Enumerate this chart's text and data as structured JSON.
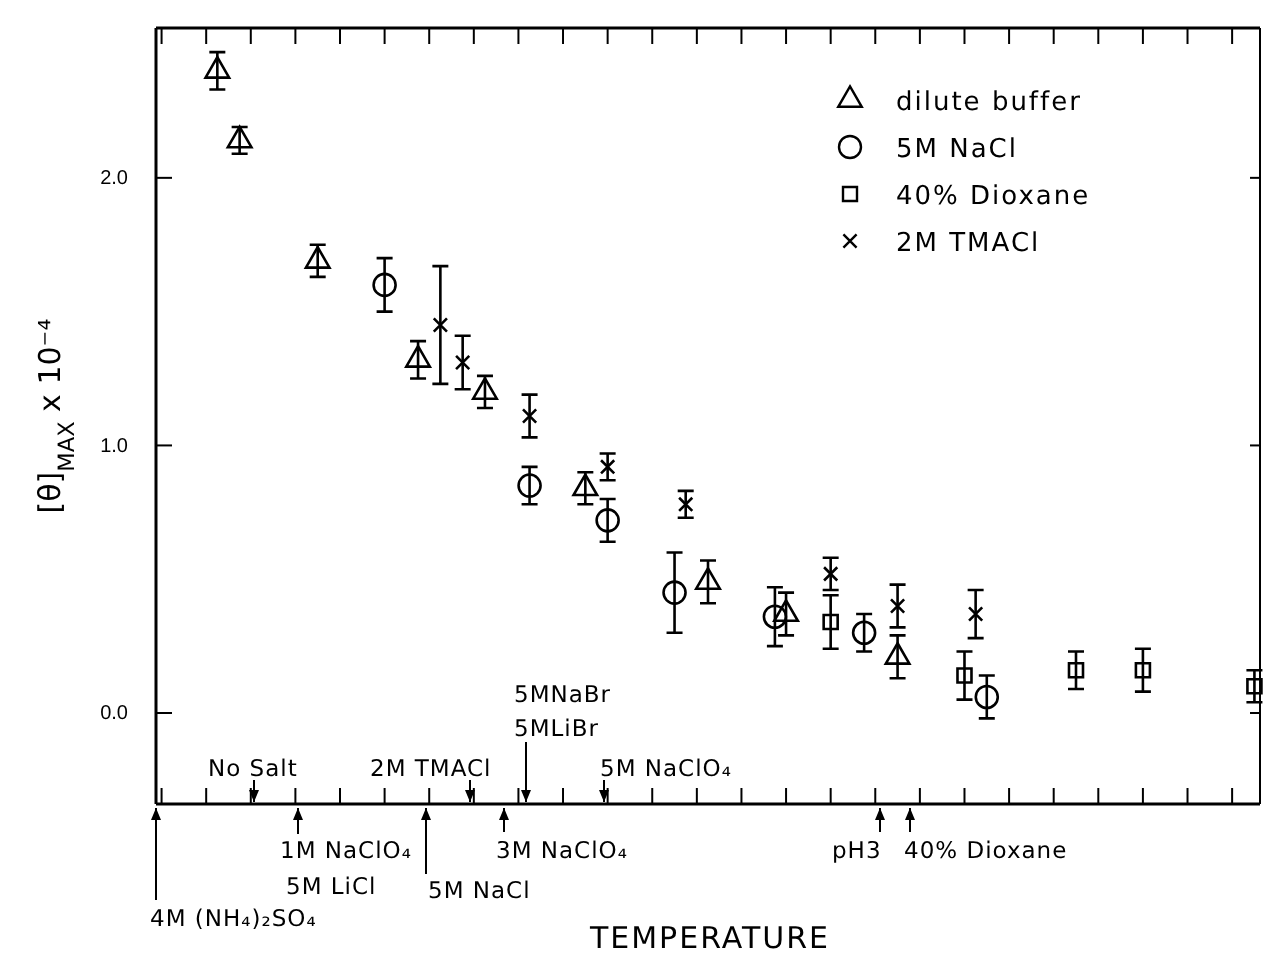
{
  "chart_data": {
    "type": "scatter",
    "xlabel": "TEMPERATURE",
    "ylabel": "[θ]$_{MAX}$ x 10⁻⁴",
    "categories": [
      null,
      null,
      null,
      null,
      null,
      null,
      null,
      null,
      null,
      null,
      null,
      null,
      null,
      null,
      null,
      null,
      null,
      null,
      null,
      null,
      null,
      null,
      null,
      null,
      null,
      null,
      null,
      null,
      null,
      null,
      null,
      null,
      null,
      null,
      null,
      null,
      null,
      null,
      null,
      null,
      null,
      null,
      null,
      null,
      null,
      null,
      null,
      null,
      null,
      null,
      null,
      null,
      null,
      null,
      null,
      null,
      null,
      null,
      null,
      null,
      null,
      null,
      null,
      null,
      null,
      null,
      null,
      null,
      null,
      null,
      null,
      null,
      null,
      null,
      null,
      null,
      null,
      null,
      null,
      null,
      null,
      null,
      null,
      null,
      null,
      null,
      null,
      null,
      null,
      null,
      null,
      null,
      null,
      null,
      null,
      null,
      null,
      null,
      null
    ],
    "ylim": [
      -0.34,
      2.56
    ],
    "yticks": [
      {
        "value": 0,
        "label": "0.0"
      },
      {
        "value": 1,
        "label": "1.0"
      },
      {
        "value": 2,
        "label": "2.0"
      }
    ],
    "legend": "top right",
    "series": [
      {
        "name": "dilute buffer",
        "color": "#000000",
        "marker": "triangle",
        "values": [
          null,
          null,
          null,
          null,
          null,
          2.4,
          null,
          2.14,
          null,
          null,
          null,
          null,
          null,
          null,
          1.69,
          null,
          null,
          null,
          null,
          null,
          null,
          null,
          null,
          1.32,
          null,
          null,
          null,
          null,
          null,
          1.2,
          null,
          null,
          null,
          null,
          null,
          null,
          null,
          null,
          0.84,
          null,
          null,
          null,
          null,
          null,
          null,
          null,
          null,
          null,
          null,
          0.49,
          null,
          null,
          null,
          null,
          null,
          null,
          0.37,
          null,
          null,
          null,
          null,
          null,
          null,
          null,
          null,
          null,
          0.21,
          null,
          null,
          null,
          null,
          null,
          null,
          null,
          null,
          null,
          null,
          null,
          null,
          null,
          null,
          null,
          null,
          null,
          null,
          null,
          null,
          null,
          null,
          null,
          null,
          null,
          null,
          null,
          null,
          null,
          null,
          null,
          null
        ],
        "errors": [
          null,
          null,
          null,
          null,
          null,
          0.07,
          null,
          0.05,
          null,
          null,
          null,
          null,
          null,
          null,
          0.06,
          null,
          null,
          null,
          null,
          null,
          null,
          null,
          null,
          0.07,
          null,
          null,
          null,
          null,
          null,
          0.06,
          null,
          null,
          null,
          null,
          null,
          null,
          null,
          null,
          0.06,
          null,
          null,
          null,
          null,
          null,
          null,
          null,
          null,
          null,
          null,
          0.08,
          null,
          null,
          null,
          null,
          null,
          null,
          0.08,
          null,
          null,
          null,
          null,
          null,
          null,
          null,
          null,
          null,
          0.08,
          null,
          null,
          null,
          null,
          null,
          null,
          null,
          null,
          null,
          null,
          null,
          null,
          null,
          null,
          null,
          null,
          null,
          null,
          null,
          null,
          null,
          null,
          null,
          null,
          null,
          null,
          null,
          null,
          null,
          null,
          null,
          null
        ]
      },
      {
        "name": "5M NaCl",
        "color": "#000000",
        "marker": "circle",
        "values": [
          null,
          null,
          null,
          null,
          null,
          null,
          null,
          null,
          null,
          null,
          null,
          null,
          null,
          null,
          null,
          null,
          null,
          null,
          null,
          null,
          1.6,
          null,
          null,
          null,
          null,
          null,
          null,
          null,
          null,
          null,
          null,
          null,
          null,
          0.85,
          null,
          null,
          null,
          null,
          null,
          null,
          0.72,
          null,
          null,
          null,
          null,
          null,
          0.45,
          null,
          null,
          null,
          null,
          null,
          null,
          null,
          null,
          0.36,
          null,
          null,
          null,
          null,
          null,
          null,
          null,
          0.3,
          null,
          null,
          null,
          null,
          null,
          null,
          null,
          null,
          null,
          null,
          0.06,
          null,
          null,
          null,
          null,
          null,
          null,
          null,
          null,
          null,
          null,
          null,
          null,
          null,
          null,
          null,
          null,
          null,
          null,
          null,
          null,
          null,
          null,
          null,
          null
        ],
        "errors": [
          null,
          null,
          null,
          null,
          null,
          null,
          null,
          null,
          null,
          null,
          null,
          null,
          null,
          null,
          null,
          null,
          null,
          null,
          null,
          null,
          0.1,
          null,
          null,
          null,
          null,
          null,
          null,
          null,
          null,
          null,
          null,
          null,
          null,
          0.07,
          null,
          null,
          null,
          null,
          null,
          null,
          0.08,
          null,
          null,
          null,
          null,
          null,
          0.15,
          null,
          null,
          null,
          null,
          null,
          null,
          null,
          null,
          0.11,
          null,
          null,
          null,
          null,
          null,
          null,
          null,
          0.07,
          null,
          null,
          null,
          null,
          null,
          null,
          null,
          null,
          null,
          null,
          0.08,
          null,
          null,
          null,
          null,
          null,
          null,
          null,
          null,
          null,
          null,
          null,
          null,
          null,
          null,
          null,
          null,
          null,
          null,
          null,
          null,
          null,
          null,
          null,
          null
        ]
      },
      {
        "name": "40% Dioxane",
        "color": "#000000",
        "marker": "square",
        "values": [
          null,
          null,
          null,
          null,
          null,
          null,
          null,
          null,
          null,
          null,
          null,
          null,
          null,
          null,
          null,
          null,
          null,
          null,
          null,
          null,
          null,
          null,
          null,
          null,
          null,
          null,
          null,
          null,
          null,
          null,
          null,
          null,
          null,
          null,
          null,
          null,
          null,
          null,
          null,
          null,
          null,
          null,
          null,
          null,
          null,
          null,
          null,
          null,
          null,
          null,
          null,
          null,
          null,
          null,
          null,
          null,
          null,
          null,
          null,
          null,
          0.34,
          null,
          null,
          null,
          null,
          null,
          null,
          null,
          null,
          null,
          null,
          null,
          0.14,
          null,
          null,
          null,
          null,
          null,
          null,
          null,
          null,
          null,
          0.16,
          null,
          null,
          null,
          null,
          null,
          0.16,
          null,
          null,
          null,
          null,
          null,
          null,
          null,
          null,
          null,
          0.1
        ],
        "errors": [
          null,
          null,
          null,
          null,
          null,
          null,
          null,
          null,
          null,
          null,
          null,
          null,
          null,
          null,
          null,
          null,
          null,
          null,
          null,
          null,
          null,
          null,
          null,
          null,
          null,
          null,
          null,
          null,
          null,
          null,
          null,
          null,
          null,
          null,
          null,
          null,
          null,
          null,
          null,
          null,
          null,
          null,
          null,
          null,
          null,
          null,
          null,
          null,
          null,
          null,
          null,
          null,
          null,
          null,
          null,
          null,
          null,
          null,
          null,
          null,
          0.1,
          null,
          null,
          null,
          null,
          null,
          null,
          null,
          null,
          null,
          null,
          null,
          0.09,
          null,
          null,
          null,
          null,
          null,
          null,
          null,
          null,
          null,
          0.07,
          null,
          null,
          null,
          null,
          null,
          0.08,
          null,
          null,
          null,
          null,
          null,
          null,
          null,
          null,
          null,
          0.06
        ]
      },
      {
        "name": "2M TMACl",
        "color": "#000000",
        "marker": "cross",
        "values": [
          null,
          null,
          null,
          null,
          null,
          null,
          null,
          null,
          null,
          null,
          null,
          null,
          null,
          null,
          null,
          null,
          null,
          null,
          null,
          null,
          null,
          null,
          null,
          null,
          null,
          1.45,
          null,
          1.31,
          null,
          null,
          null,
          null,
          null,
          1.11,
          null,
          null,
          null,
          null,
          null,
          null,
          0.92,
          null,
          null,
          null,
          null,
          null,
          null,
          0.78,
          null,
          null,
          null,
          null,
          null,
          null,
          null,
          null,
          null,
          null,
          null,
          null,
          0.52,
          null,
          null,
          null,
          null,
          null,
          0.4,
          null,
          null,
          null,
          null,
          null,
          null,
          0.37,
          null,
          null,
          null,
          null,
          null,
          null,
          null,
          null,
          null,
          null,
          null,
          null,
          null,
          null,
          null,
          null,
          null,
          null,
          null,
          null,
          null,
          null,
          null,
          null,
          null
        ],
        "errors": [
          null,
          null,
          null,
          null,
          null,
          null,
          null,
          null,
          null,
          null,
          null,
          null,
          null,
          null,
          null,
          null,
          null,
          null,
          null,
          null,
          null,
          null,
          null,
          null,
          null,
          0.22,
          null,
          0.1,
          null,
          null,
          null,
          null,
          null,
          0.08,
          null,
          null,
          null,
          null,
          null,
          null,
          0.05,
          null,
          null,
          null,
          null,
          null,
          null,
          0.05,
          null,
          null,
          null,
          null,
          null,
          null,
          null,
          null,
          null,
          null,
          null,
          null,
          0.06,
          null,
          null,
          null,
          null,
          null,
          0.08,
          null,
          null,
          null,
          null,
          null,
          null,
          0.09,
          null,
          null,
          null,
          null,
          null,
          null,
          null,
          null,
          null,
          null,
          null,
          null,
          null,
          null,
          null,
          null,
          null,
          null,
          null,
          null,
          null,
          null,
          null,
          null,
          null
        ]
      }
    ],
    "annotations": [
      "No Salt",
      "2M TMACl",
      "5MNaBr",
      "5MLiBr",
      "5M NaClO₄",
      "4M (NH₄)₂SO₄",
      "1M NaClO₄",
      "5M LiCl",
      "5M NaCl",
      "3M NaClO₄",
      "pH3",
      "40% Dioxane"
    ]
  }
}
